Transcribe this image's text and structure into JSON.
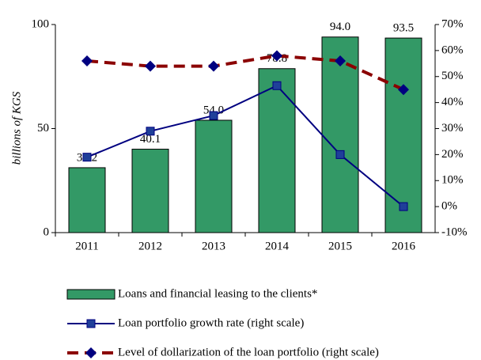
{
  "chart_data": {
    "type": "bar",
    "ylabel": "billions of KGS",
    "categories": [
      "2011",
      "2012",
      "2013",
      "2014",
      "2015",
      "2016"
    ],
    "ylim": [
      0,
      100
    ],
    "yticks": [
      0,
      50,
      100
    ],
    "y2lim": [
      -10,
      70
    ],
    "y2ticks": [
      {
        "value": -10,
        "label": "-10%"
      },
      {
        "value": 0,
        "label": "0%"
      },
      {
        "value": 10,
        "label": "10%"
      },
      {
        "value": 20,
        "label": "20%"
      },
      {
        "value": 30,
        "label": "30%"
      },
      {
        "value": 40,
        "label": "40%"
      },
      {
        "value": 50,
        "label": "50%"
      },
      {
        "value": 60,
        "label": "60%"
      },
      {
        "value": 70,
        "label": "70%"
      }
    ],
    "series": [
      {
        "name": "Loans and financial leasing to the clients*",
        "type": "bar",
        "color": "#339966",
        "values": [
          31.2,
          40.1,
          54.0,
          78.8,
          94.0,
          93.5
        ],
        "value_labels": [
          "31.2",
          "40.1",
          "54.0",
          "78.8",
          "94.0",
          "93.5"
        ]
      },
      {
        "name": "Loan portfolio growth rate (right scale)",
        "type": "line",
        "axis": "y2",
        "color": "#000080",
        "marker": "square",
        "marker_color": "#1f3f99",
        "values": [
          19,
          29,
          35,
          46.5,
          20,
          0
        ]
      },
      {
        "name": "Level of dollarization of the loan portfolio (right scale)",
        "type": "line",
        "axis": "y2",
        "color": "#8b0000",
        "dashed": true,
        "marker": "diamond",
        "marker_color": "#000080",
        "values": [
          56,
          54,
          54,
          58,
          56,
          45
        ]
      }
    ]
  }
}
